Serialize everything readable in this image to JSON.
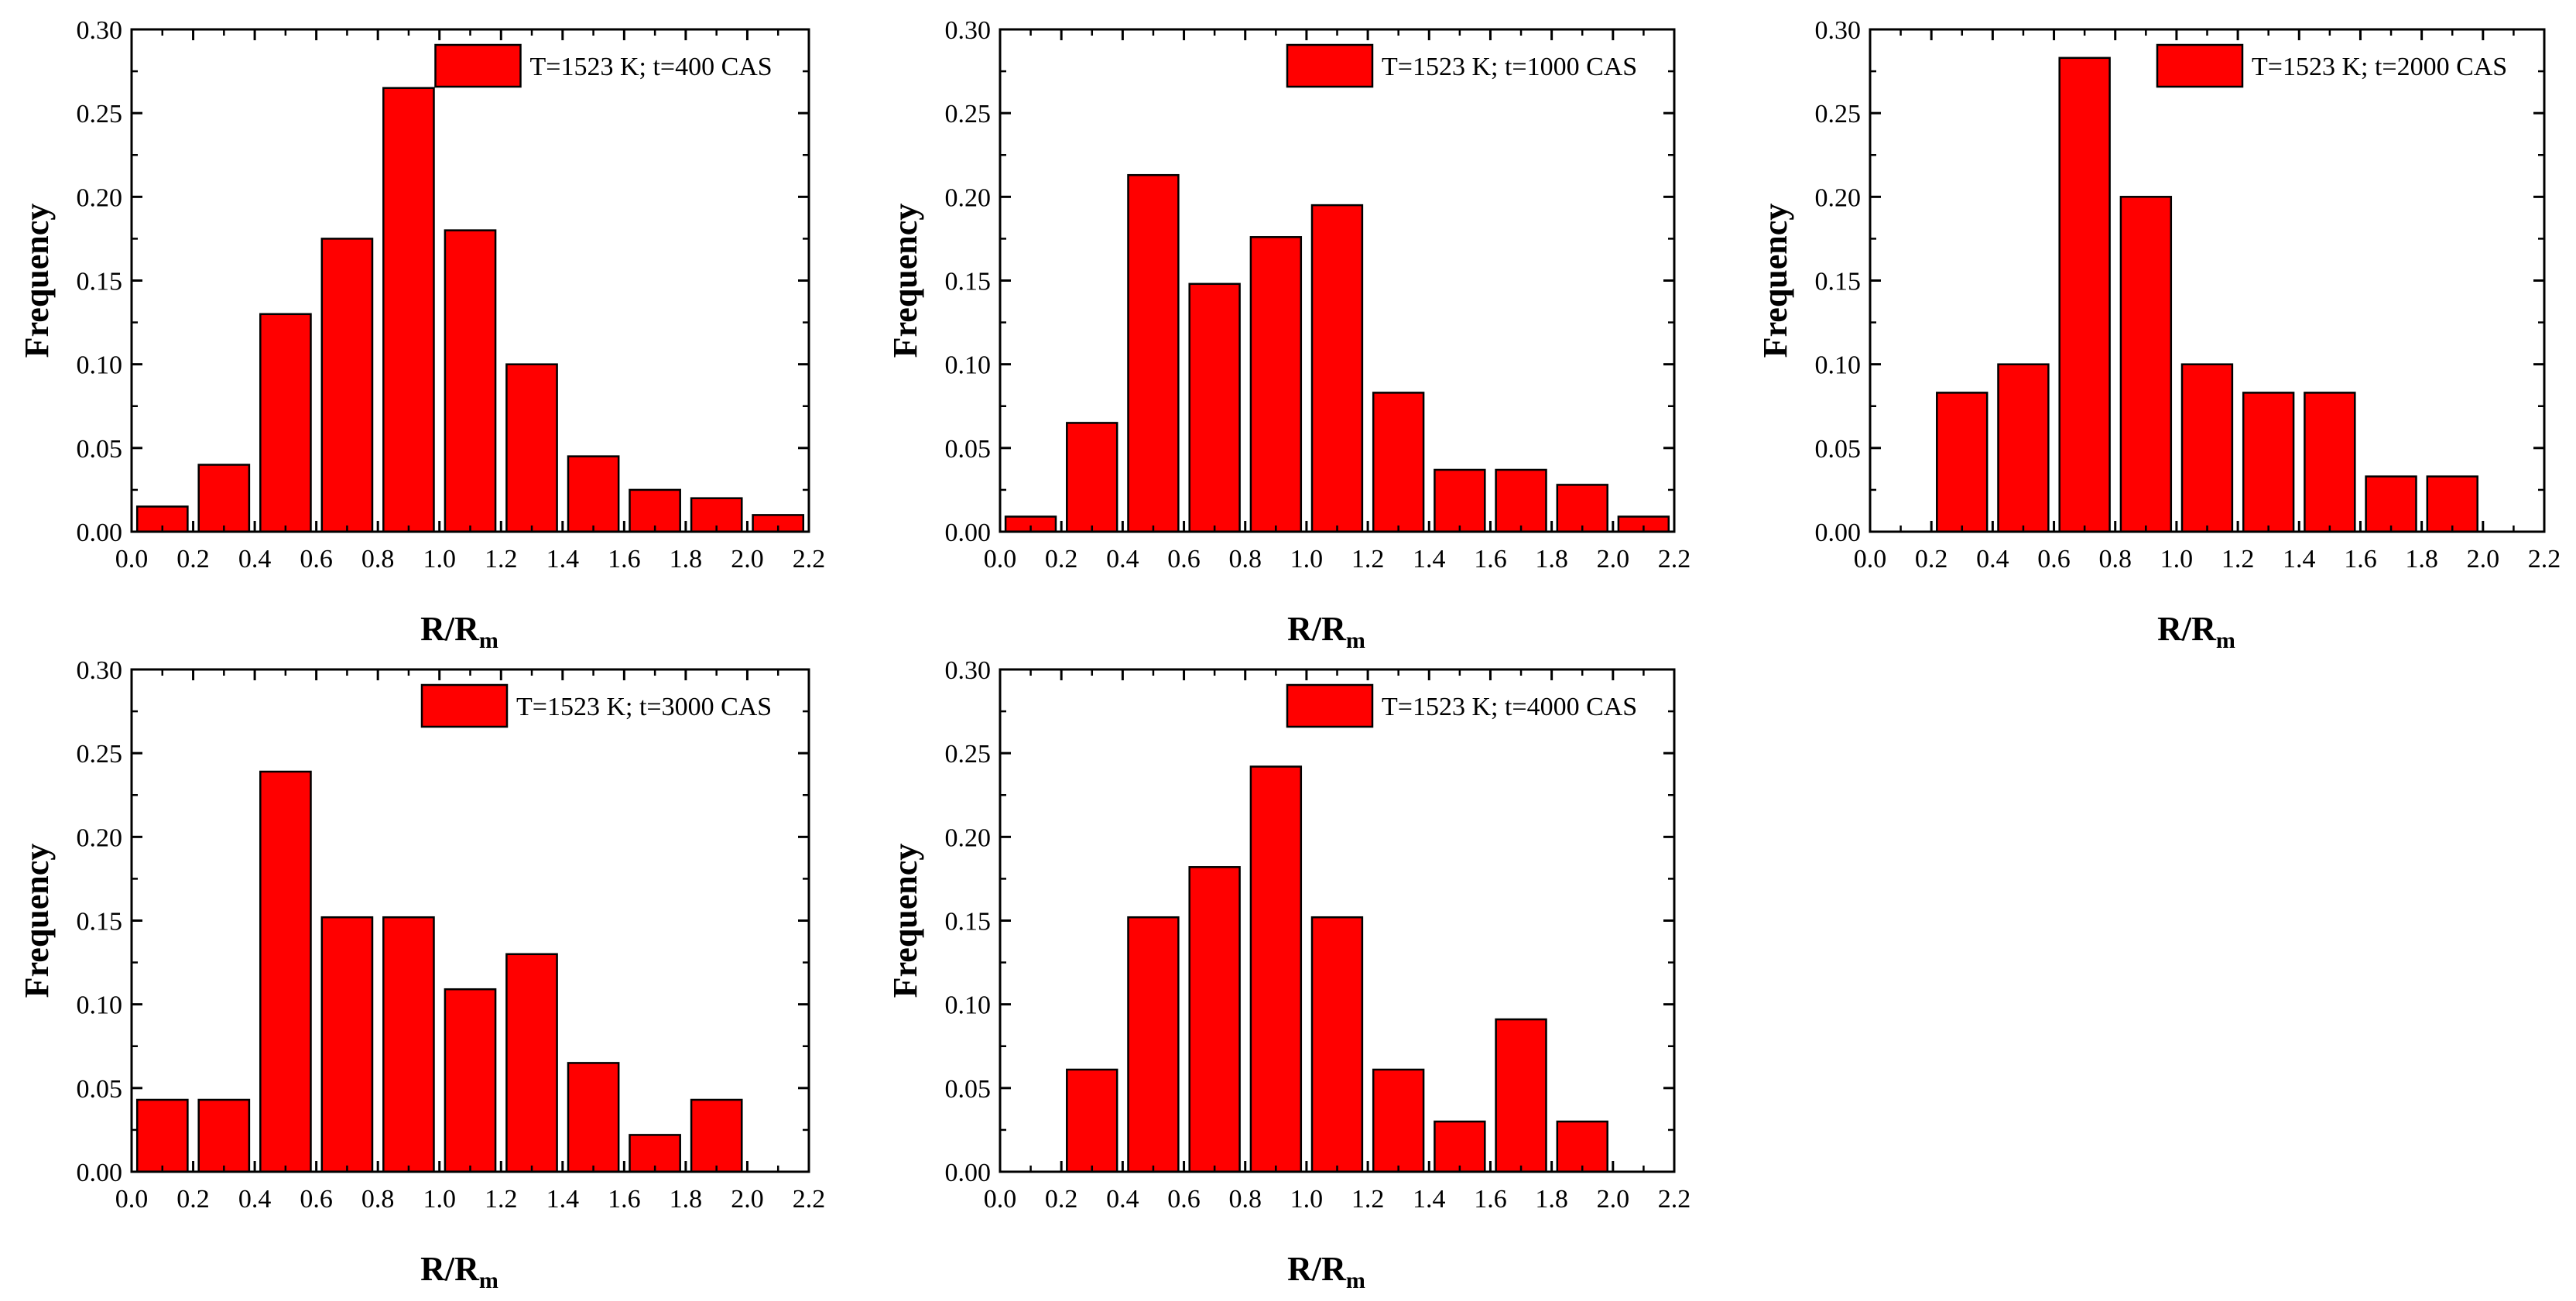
{
  "chart_data": [
    {
      "type": "bar",
      "title": "",
      "legend": "T=1523 K; t=400 CAS",
      "xlabel": "R/R",
      "xlabel_sub": "m",
      "ylabel": "Frequency",
      "xlim": [
        0.0,
        2.2
      ],
      "ylim": [
        0.0,
        0.3
      ],
      "xticks": [
        "0.0",
        "0.2",
        "0.4",
        "0.6",
        "0.8",
        "1.0",
        "1.2",
        "1.4",
        "1.6",
        "1.8",
        "2.0",
        "2.2"
      ],
      "yticks": [
        "0.00",
        "0.05",
        "0.10",
        "0.15",
        "0.20",
        "0.25",
        "0.30"
      ],
      "bin_centers": [
        0.1,
        0.3,
        0.5,
        0.7,
        0.9,
        1.1,
        1.3,
        1.5,
        1.7,
        1.9,
        2.1
      ],
      "values": [
        0.015,
        0.04,
        0.13,
        0.175,
        0.265,
        0.18,
        0.1,
        0.045,
        0.025,
        0.02,
        0.01
      ],
      "bar_color": "#ff0000",
      "legend_placement": "top-right"
    },
    {
      "type": "bar",
      "title": "",
      "legend": "T=1523 K; t=1000 CAS",
      "xlabel": "R/R",
      "xlabel_sub": "m",
      "ylabel": "Frequency",
      "xlim": [
        0.0,
        2.2
      ],
      "ylim": [
        0.0,
        0.3
      ],
      "xticks": [
        "0.0",
        "0.2",
        "0.4",
        "0.6",
        "0.8",
        "1.0",
        "1.2",
        "1.4",
        "1.6",
        "1.8",
        "2.0",
        "2.2"
      ],
      "yticks": [
        "0.00",
        "0.05",
        "0.10",
        "0.15",
        "0.20",
        "0.25",
        "0.30"
      ],
      "bin_centers": [
        0.1,
        0.3,
        0.5,
        0.7,
        0.9,
        1.1,
        1.3,
        1.5,
        1.7,
        1.9,
        2.1
      ],
      "values": [
        0.009,
        0.065,
        0.213,
        0.148,
        0.176,
        0.195,
        0.083,
        0.037,
        0.037,
        0.028,
        0.009
      ],
      "bar_color": "#ff0000",
      "legend_placement": "top-right"
    },
    {
      "type": "bar",
      "title": "",
      "legend": "T=1523 K; t=2000 CAS",
      "xlabel": "R/R",
      "xlabel_sub": "m",
      "ylabel": "Frequency",
      "xlim": [
        0.0,
        2.2
      ],
      "ylim": [
        0.0,
        0.3
      ],
      "xticks": [
        "0.0",
        "0.2",
        "0.4",
        "0.6",
        "0.8",
        "1.0",
        "1.2",
        "1.4",
        "1.6",
        "1.8",
        "2.0",
        "2.2"
      ],
      "yticks": [
        "0.00",
        "0.05",
        "0.10",
        "0.15",
        "0.20",
        "0.25",
        "0.30"
      ],
      "bin_centers": [
        0.3,
        0.5,
        0.7,
        0.9,
        1.1,
        1.3,
        1.5,
        1.7,
        1.9
      ],
      "values": [
        0.083,
        0.1,
        0.283,
        0.2,
        0.1,
        0.083,
        0.083,
        0.033,
        0.033
      ],
      "bar_color": "#ff0000",
      "legend_placement": "top-right"
    },
    {
      "type": "bar",
      "title": "",
      "legend": "T=1523 K; t=3000 CAS",
      "xlabel": "R/R",
      "xlabel_sub": "m",
      "ylabel": "Frequency",
      "xlim": [
        0.0,
        2.2
      ],
      "ylim": [
        0.0,
        0.3
      ],
      "xticks": [
        "0.0",
        "0.2",
        "0.4",
        "0.6",
        "0.8",
        "1.0",
        "1.2",
        "1.4",
        "1.6",
        "1.8",
        "2.0",
        "2.2"
      ],
      "yticks": [
        "0.00",
        "0.05",
        "0.10",
        "0.15",
        "0.20",
        "0.25",
        "0.30"
      ],
      "bin_centers": [
        0.1,
        0.3,
        0.5,
        0.7,
        0.9,
        1.1,
        1.3,
        1.5,
        1.7,
        1.9
      ],
      "values": [
        0.043,
        0.043,
        0.239,
        0.152,
        0.152,
        0.109,
        0.13,
        0.065,
        0.022,
        0.043
      ],
      "bar_color": "#ff0000",
      "legend_placement": "top-right"
    },
    {
      "type": "bar",
      "title": "",
      "legend": "T=1523 K; t=4000 CAS",
      "xlabel": "R/R",
      "xlabel_sub": "m",
      "ylabel": "Frequency",
      "xlim": [
        0.0,
        2.2
      ],
      "ylim": [
        0.0,
        0.3
      ],
      "xticks": [
        "0.0",
        "0.2",
        "0.4",
        "0.6",
        "0.8",
        "1.0",
        "1.2",
        "1.4",
        "1.6",
        "1.8",
        "2.0",
        "2.2"
      ],
      "yticks": [
        "0.00",
        "0.05",
        "0.10",
        "0.15",
        "0.20",
        "0.25",
        "0.30"
      ],
      "bin_centers": [
        0.3,
        0.5,
        0.7,
        0.9,
        1.1,
        1.3,
        1.5,
        1.7,
        1.9
      ],
      "values": [
        0.061,
        0.152,
        0.182,
        0.242,
        0.152,
        0.061,
        0.03,
        0.091,
        0.03
      ],
      "bar_color": "#ff0000",
      "legend_placement": "top-right"
    }
  ]
}
